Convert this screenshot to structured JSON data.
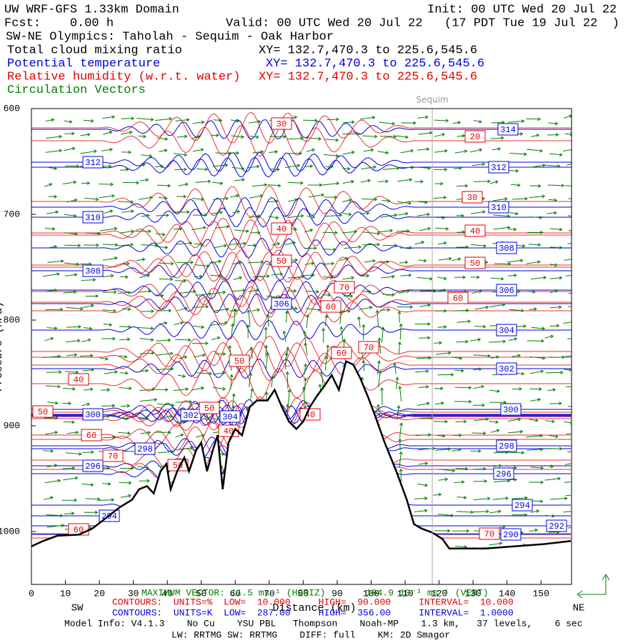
{
  "header": {
    "title": "UW WRF-GFS 1.33km Domain",
    "init": "Init: 00 UTC Wed 20 Jul 22",
    "fcst": "Fcst:    0.00 h",
    "valid": "Valid: 00 UTC Wed 20 Jul 22   (17 PDT Tue 19 Jul 22  )",
    "section": "SW-NE Olympics: Taholah - Sequim - Oak Harbor",
    "fields": [
      {
        "name": "Total cloud mixing ratio",
        "xy": "XY= 132.7,470.3 to 225.6,545.6",
        "color": "#000000"
      },
      {
        "name": "Potential temperature",
        "xy": "XY= 132.7,470.3 to 225.6,545.6",
        "color": "#0000e0"
      },
      {
        "name": "Relative humidity (w.r.t. water)",
        "xy": "XY= 132.7,470.3 to 225.6,545.6",
        "color": "#e00000"
      },
      {
        "name": "Circulation Vectors",
        "color": "#008000"
      }
    ]
  },
  "chart_data": {
    "type": "contour",
    "xlabel": "Distance (km)",
    "ylabel": "Pressure (hPa)",
    "xlim": [
      0,
      159
    ],
    "ylim": [
      600,
      1050
    ],
    "xticks": [
      0,
      10,
      20,
      30,
      40,
      50,
      60,
      70,
      80,
      90,
      100,
      110,
      120,
      130,
      140,
      150
    ],
    "yticks": [
      600,
      700,
      800,
      900,
      1000
    ],
    "left_label": "SW",
    "right_label": "NE",
    "marker": {
      "label": "Sequim",
      "x": 118
    },
    "terrain": {
      "x": [
        0,
        3.4,
        7.6,
        13.9,
        18,
        22,
        26,
        29.6,
        31.7,
        34,
        36,
        38,
        39.7,
        41,
        42.9,
        45,
        46.4,
        48.5,
        50,
        51.7,
        53.4,
        54.8,
        56.3,
        58,
        60,
        62,
        64.3,
        66.4,
        69.5,
        71.6,
        73.7,
        75.8,
        78,
        80,
        82,
        84,
        86.3,
        88.4,
        90.5,
        92.6,
        94.7,
        96.8,
        99,
        101,
        104,
        107.4,
        110.5,
        112.6,
        114.7,
        118,
        121,
        123,
        133.6,
        142,
        150.4,
        158.8
      ],
      "values": [
        1014,
        1009,
        1004,
        1003,
        997,
        987,
        977,
        970,
        960,
        957,
        964,
        943,
        936,
        960,
        943,
        930,
        943,
        923,
        916,
        943,
        923,
        909,
        960,
        916,
        903,
        909,
        882,
        876,
        876,
        866,
        882,
        896,
        903,
        896,
        882,
        872,
        862,
        852,
        866,
        839,
        842,
        855,
        872,
        889,
        916,
        943,
        970,
        993,
        997,
        1001,
        1007,
        1016,
        1016,
        1014,
        1012,
        1009
      ]
    },
    "theta": {
      "color": "#0000e0",
      "labels": [
        314,
        312,
        312,
        310,
        310,
        308,
        308,
        306,
        306,
        304,
        304,
        302,
        302,
        300,
        300,
        298,
        298,
        296,
        296,
        294,
        294,
        292,
        290
      ]
    },
    "rh": {
      "color": "#e00000",
      "labels": [
        30,
        20,
        30,
        40,
        40,
        50,
        50,
        70,
        60,
        60,
        70,
        60,
        50,
        40,
        50,
        50,
        40,
        40,
        60,
        70,
        50,
        60,
        70
      ]
    },
    "vectors": {
      "color": "#008000"
    }
  },
  "footer": {
    "max_vector_h": "MAXIMUM VECTOR: 11.5 ms⁻¹ (HORIZ)",
    "max_vector_v": "104.9 10⁻³ ms⁻¹ (VERT)",
    "rh_contours": "CONTOURS:  UNITS=%  LOW=  10.000     HIGH=  90.000     INTERVAL=  10.000",
    "theta_contours": "CONTOURS:  UNITS=K  LOW=  287.00     HIGH=  356.00     INTERVAL=  1.0000",
    "model_info": "Model Info: V4.1.3    No Cu    YSU PBL   Thompson    Noah-MP    1.3 km,   37 levels,    6 sec",
    "physics": "LW: RRTMG SW: RRTMG    DIFF: full    KM: 2D Smagor"
  }
}
